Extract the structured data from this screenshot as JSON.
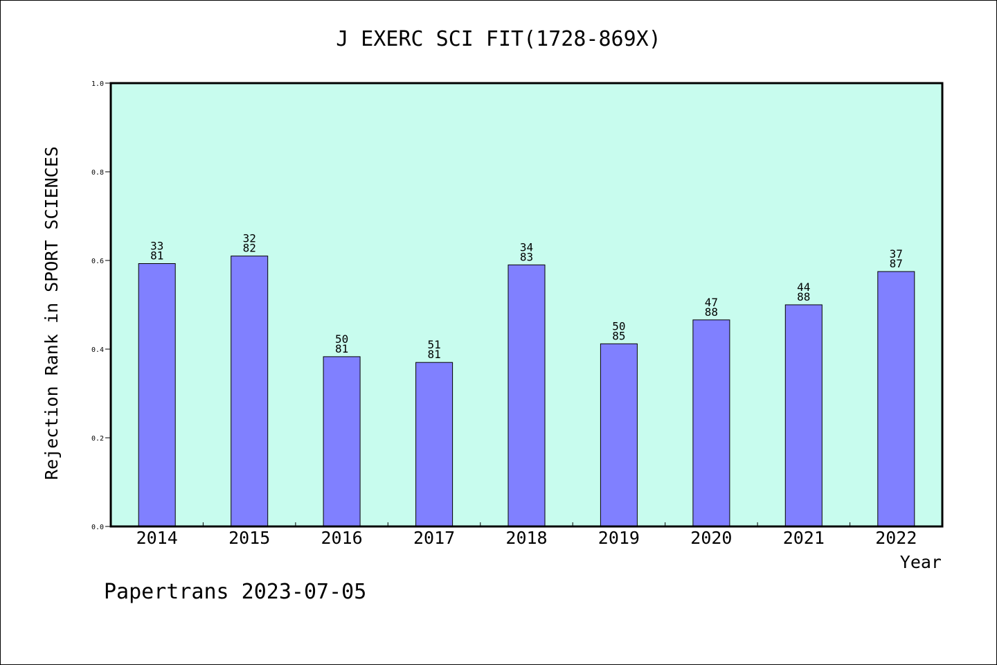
{
  "chart_data": {
    "type": "bar",
    "title": "J EXERC SCI FIT(1728-869X)",
    "xlabel": "Year",
    "ylabel": "Rejection Rank in SPORT SCIENCES",
    "ylim": [
      0.0,
      1.0
    ],
    "yticks": [
      "0.0",
      "0.2",
      "0.4",
      "0.6",
      "0.8",
      "1.0"
    ],
    "categories": [
      "2014",
      "2015",
      "2016",
      "2017",
      "2018",
      "2019",
      "2020",
      "2021",
      "2022"
    ],
    "values": [
      0.593,
      0.61,
      0.383,
      0.37,
      0.59,
      0.412,
      0.466,
      0.5,
      0.575
    ],
    "bar_labels": [
      {
        "top": "33",
        "bottom": "81"
      },
      {
        "top": "32",
        "bottom": "82"
      },
      {
        "top": "50",
        "bottom": "81"
      },
      {
        "top": "51",
        "bottom": "81"
      },
      {
        "top": "34",
        "bottom": "83"
      },
      {
        "top": "50",
        "bottom": "85"
      },
      {
        "top": "47",
        "bottom": "88"
      },
      {
        "top": "44",
        "bottom": "88"
      },
      {
        "top": "37",
        "bottom": "87"
      }
    ],
    "grid": false,
    "colors": {
      "plot_background": "#c8fcee",
      "bar_fill": "#8080ff",
      "bar_edge": "#000000"
    }
  },
  "footer": "Papertrans 2023-07-05"
}
